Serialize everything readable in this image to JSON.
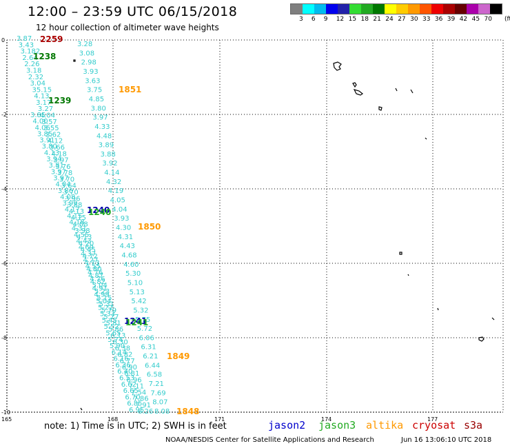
{
  "header": {
    "title": "12:00 – 23:59 UTC 06/15/2018",
    "subtitle": "12 hour collection of altimeter wave heights"
  },
  "color_scale": {
    "colors": [
      "#7f7f7f",
      "#00ffff",
      "#00bbee",
      "#0000ee",
      "#2222aa",
      "#33dd33",
      "#22aa22",
      "#007700",
      "#ffff00",
      "#ffcc00",
      "#ff9900",
      "#ff5500",
      "#ee0000",
      "#aa0000",
      "#660000",
      "#aa00aa",
      "#cc66cc",
      "#000000"
    ],
    "labels": [
      "3",
      "6",
      "9",
      "12",
      "15",
      "18",
      "21",
      "24",
      "27",
      "30",
      "33",
      "36",
      "39",
      "42",
      "45",
      "70"
    ],
    "unit": "(ft)"
  },
  "axes": {
    "lat_labels": [
      "0",
      "-2",
      "-4",
      "-6",
      "-8",
      "-10"
    ],
    "lon_labels": [
      "165",
      "168",
      "171",
      "174",
      "177"
    ]
  },
  "time_labels": [
    {
      "text": "2259",
      "color": "#aa0000"
    },
    {
      "text": "1238",
      "color": "#007700"
    },
    {
      "text": "1851",
      "color": "#ff9900"
    },
    {
      "text": "1239",
      "color": "#007700"
    },
    {
      "text": "1240",
      "color": "#0000aa"
    },
    {
      "text": "1240",
      "color": "#22aa22"
    },
    {
      "text": "1850",
      "color": "#ff9900"
    },
    {
      "text": "1241",
      "color": "#0000aa"
    },
    {
      "text": "1241",
      "color": "#22aa22"
    },
    {
      "text": "1849",
      "color": "#ff9900"
    },
    {
      "text": "1848",
      "color": "#ff9900"
    }
  ],
  "track_altika": {
    "color": "#33cccc",
    "values": [
      "3.28",
      "3.08",
      "2.98",
      "3.93",
      "3.63",
      "3.75",
      "4.85",
      "3.80",
      "3.97",
      "4.33",
      "4.48",
      "3.89",
      "3.88",
      "3.92",
      "4.14",
      "4.32",
      "4.19",
      "4.05",
      "4.04",
      "3.93",
      "4.30",
      "4.31",
      "4.43",
      "4.68",
      "4.60",
      "5.30",
      "5.10",
      "5.13",
      "5.42",
      "5.32",
      "5.75",
      "5.72",
      "6.06",
      "6.31",
      "6.21",
      "6.44",
      "6.58",
      "7.21",
      "7.69",
      "8.07",
      "8.08"
    ]
  },
  "track_west": {
    "color": "#33cccc",
    "values": [
      "3.87",
      "3.43",
      "3.182",
      "2.64",
      "2.26",
      "3.18",
      "2.32",
      "3.04",
      "35.15",
      "4.13",
      "3.17",
      "3.27",
      "4.04",
      "3.57",
      "3.55",
      "3.62",
      "4.12",
      "3.66",
      "4.18",
      "3.97",
      "3.76",
      "3.78",
      "3.70",
      "3.64",
      "3.70",
      "3.96",
      "3.88",
      "4.13",
      "4.15",
      "4.08",
      "3.98",
      "4.13",
      "4.20",
      "4.45",
      "4.72",
      "4.73",
      "4.80",
      "4.87",
      "4.82",
      "4.91",
      "4.99",
      "5.04",
      "5.22",
      "5.33",
      "5.45",
      "5.52",
      "5.65",
      "5.74",
      "5.90",
      "6.14",
      "6.16",
      "6.36",
      "6.40",
      "6.53",
      "6.62",
      "6.65",
      "6.70",
      "6.85",
      "6.95"
    ]
  },
  "track_east": {
    "color": "#33cccc",
    "values": [
      "3.85",
      "4.00",
      "4.06",
      "3.85",
      "3.91",
      "3.80",
      "4.13",
      "3.94",
      "3.81",
      "3.97",
      "3.97",
      "4.04",
      "3.86",
      "4.08",
      "3.99",
      "4.17",
      "4.15",
      "4.18",
      "4.31",
      "4.55",
      "4.43",
      "4.69",
      "4.37",
      "4.27",
      "4.55",
      "4.76",
      "4.76",
      "5.04",
      "5.23",
      "5.15",
      "5.31",
      "5.79",
      "5.77",
      "5.81",
      "5.86",
      "6.13",
      "6.30",
      "6.38",
      "6.82",
      "6.77",
      "6.90",
      "6.81",
      "6.96",
      "7.11",
      "7.54",
      "7.86",
      "7.91",
      "8.26"
    ]
  },
  "footer": {
    "note": "note: 1) Time is in UTC; 2) SWH is in feet",
    "satellites": [
      {
        "name": "jason2",
        "color": "#0000cc"
      },
      {
        "name": "jason3",
        "color": "#22aa22"
      },
      {
        "name": "altika",
        "color": "#ff9900"
      },
      {
        "name": "cryosat",
        "color": "#cc0000"
      },
      {
        "name": "s3a",
        "color": "#990000"
      }
    ],
    "credit": "NOAA/NESDIS Center for Satellite Applications and Research",
    "timestamp": "Jun 16 13:06:10 UTC 2018"
  }
}
